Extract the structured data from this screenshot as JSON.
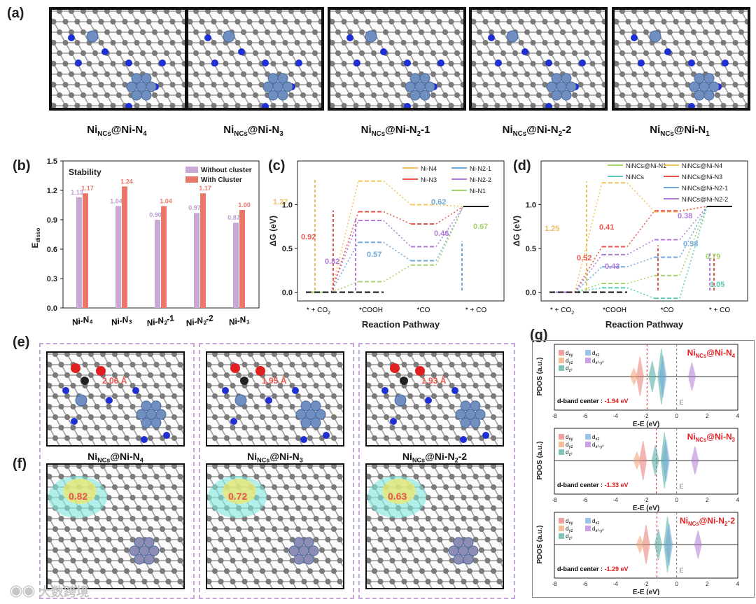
{
  "panels": {
    "a": "(a)",
    "b": "(b)",
    "c": "(c)",
    "d": "(d)",
    "e": "(e)",
    "f": "(f)",
    "g": "(g)"
  },
  "panel_a": {
    "labels": [
      {
        "base": "Ni",
        "sub": "NCs",
        "rest": "@Ni-N",
        "sub2": "4",
        "tail": ""
      },
      {
        "base": "Ni",
        "sub": "NCs",
        "rest": "@Ni-N",
        "sub2": "3",
        "tail": ""
      },
      {
        "base": "Ni",
        "sub": "NCs",
        "rest": "@Ni-N",
        "sub2": "2",
        "tail": "-1"
      },
      {
        "base": "Ni",
        "sub": "NCs",
        "rest": "@Ni-N",
        "sub2": "2",
        "tail": "-2"
      },
      {
        "base": "Ni",
        "sub": "NCs",
        "rest": "@Ni-N",
        "sub2": "1",
        "tail": ""
      }
    ]
  },
  "panel_e": {
    "distances": [
      "2.06 Å",
      "1.95 Å",
      "1.93 Å"
    ],
    "labels": [
      {
        "base": "Ni",
        "sub": "NCs",
        "rest": "@Ni-N",
        "sub2": "4",
        "tail": ""
      },
      {
        "base": "Ni",
        "sub": "NCs",
        "rest": "@Ni-N",
        "sub2": "3",
        "tail": ""
      },
      {
        "base": "Ni",
        "sub": "NCs",
        "rest": "@Ni-N",
        "sub2": "2",
        "tail": "-2"
      }
    ]
  },
  "panel_f": {
    "charges": [
      "0.82",
      "0.72",
      "0.63"
    ]
  },
  "chart_data": [
    {
      "id": "b",
      "type": "bar",
      "title": "Stability",
      "ylabel": "E_disso",
      "ylim": [
        0.0,
        1.5
      ],
      "yticks": [
        "0.0",
        "0.3",
        "0.6",
        "0.9",
        "1.2",
        "1.5"
      ],
      "categories": [
        "Ni-N4",
        "Ni-N3",
        "Ni-N2-1",
        "Ni-N2-2",
        "Ni-N1"
      ],
      "series": [
        {
          "name": "Without cluster",
          "color": "#c8a9d6",
          "values": [
            1.13,
            1.04,
            0.9,
            0.97,
            0.87
          ]
        },
        {
          "name": "With Cluster",
          "color": "#e8786a",
          "values": [
            1.17,
            1.24,
            1.04,
            1.17,
            1.0
          ]
        }
      ]
    },
    {
      "id": "c",
      "type": "line",
      "title": "",
      "xlabel": "Reaction Pathway",
      "ylabel": "ΔG (eV)",
      "ylim": [
        -0.1,
        1.5
      ],
      "yticks": [
        "0.0",
        "0.5",
        "1.0"
      ],
      "categories": [
        "* + CO2",
        "*COOH",
        "*CO",
        "* + CO"
      ],
      "series": [
        {
          "name": "Ni-N4",
          "color": "#f5c35c",
          "values": [
            0.0,
            1.27,
            1.0,
            0.98
          ]
        },
        {
          "name": "Ni-N3",
          "color": "#e8544a",
          "values": [
            0.0,
            0.92,
            0.78,
            0.98
          ]
        },
        {
          "name": "Ni-N2-1",
          "color": "#6fa8dc",
          "values": [
            0.0,
            0.57,
            0.36,
            0.98
          ]
        },
        {
          "name": "Ni-N2-2",
          "color": "#b07ad6",
          "values": [
            0.0,
            0.82,
            0.52,
            0.98
          ]
        },
        {
          "name": "Ni-N1",
          "color": "#a4d46c",
          "values": [
            0.0,
            0.12,
            0.31,
            0.98
          ]
        }
      ],
      "annotations": [
        "1.27",
        "0.92",
        "0.82",
        "0.57",
        "0.62",
        "0.46",
        "0.67"
      ]
    },
    {
      "id": "d",
      "type": "line",
      "title": "",
      "xlabel": "Reaction Pathway",
      "ylabel": "ΔG (eV)",
      "ylim": [
        -0.1,
        1.5
      ],
      "yticks": [
        "0.0",
        "0.5",
        "1.0"
      ],
      "categories": [
        "* + CO2",
        "*COOH",
        "*CO",
        "* + CO"
      ],
      "series": [
        {
          "name": "NiNCs@Ni-N1",
          "color": "#a4d46c",
          "values": [
            0.0,
            0.1,
            0.19,
            0.98
          ]
        },
        {
          "name": "NiNCs",
          "color": "#5cc9b6",
          "values": [
            0.0,
            0.05,
            -0.07,
            0.98
          ]
        },
        {
          "name": "NiNCs@Ni-N4",
          "color": "#f5c35c",
          "values": [
            0.0,
            1.25,
            0.92,
            0.98
          ]
        },
        {
          "name": "NiNCs@Ni-N3",
          "color": "#e8544a",
          "values": [
            0.0,
            0.52,
            0.93,
            0.98
          ]
        },
        {
          "name": "NiNCs@Ni-N2-1",
          "color": "#6fa8dc",
          "values": [
            0.0,
            0.29,
            0.4,
            0.98
          ]
        },
        {
          "name": "NiNCs@Ni-N2-2",
          "color": "#b07ad6",
          "values": [
            0.0,
            0.43,
            0.6,
            0.98
          ]
        }
      ],
      "annotations": [
        "1.25",
        "0.52",
        "0.41",
        "0.43",
        "0.38",
        "0.58",
        "0.79",
        "1.05"
      ]
    },
    {
      "id": "g",
      "type": "line",
      "xlabel": "E-E_f (eV)",
      "ylabel": "PDOS (a.u.)",
      "xlim": [
        -8,
        4
      ],
      "xticks": [
        "-8",
        "-6",
        "-4",
        "-2",
        "0",
        "2",
        "4"
      ],
      "legend": [
        "d_xy",
        "d_xz",
        "d_yz",
        "d_x2-y2",
        "d_z2"
      ],
      "subplots": [
        {
          "label": "NiNCs@Ni-N4",
          "d_band_center": "-1.94 eV"
        },
        {
          "label": "NiNCs@Ni-N3",
          "d_band_center": "-1.33 eV"
        },
        {
          "label": "NiNCs@Ni-N2-2",
          "d_band_center": "-1.29 eV"
        }
      ],
      "ef_label": "E_f",
      "dband_prefix": "d-band center : "
    }
  ],
  "text": {
    "stability": "Stability",
    "legend_without": "Without cluster",
    "legend_with": "With Cluster",
    "rxn_pathway": "Reaction Pathway",
    "dG": "ΔG (eV)",
    "pdos": "PDOS (a.u.)",
    "watermark": "大数跨境"
  }
}
